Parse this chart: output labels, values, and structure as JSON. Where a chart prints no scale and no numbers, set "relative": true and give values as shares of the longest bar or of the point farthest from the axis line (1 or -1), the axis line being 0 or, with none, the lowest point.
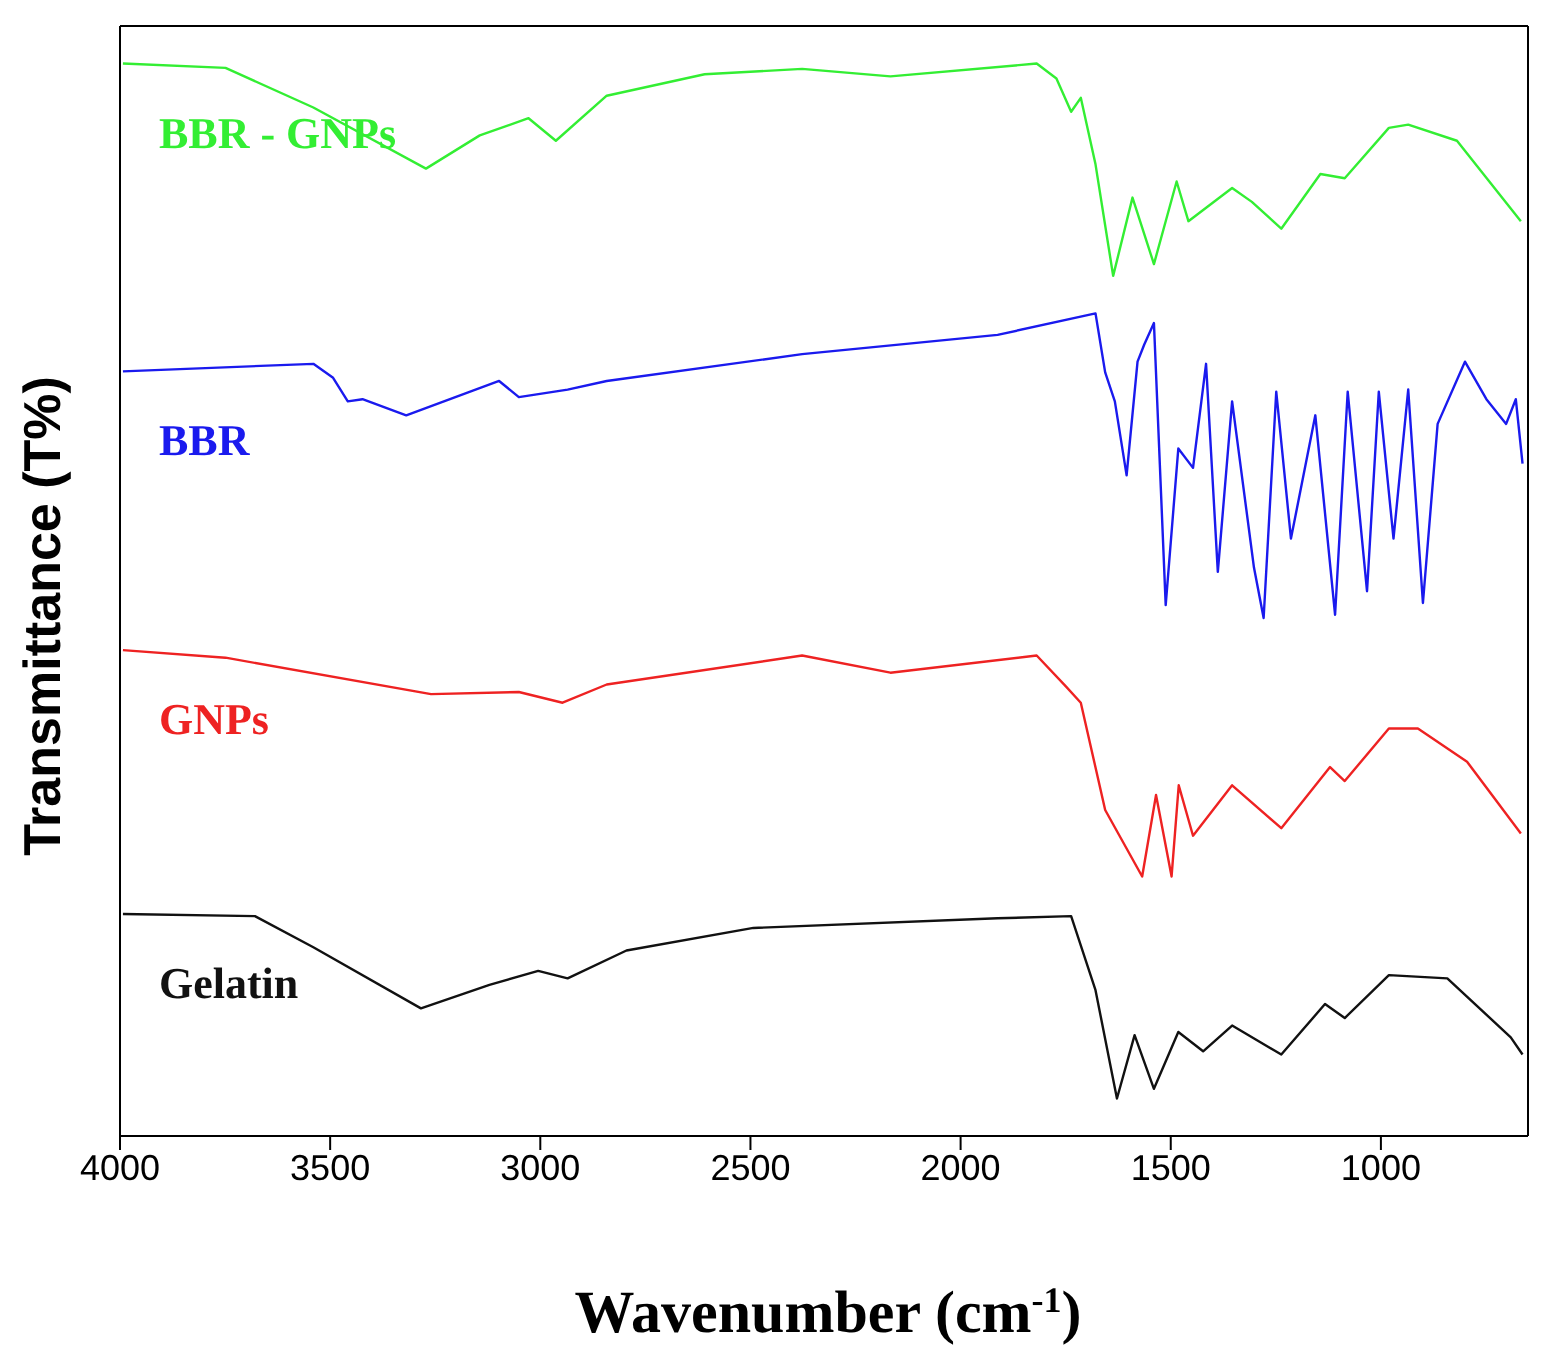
{
  "chart_data": {
    "type": "line",
    "relative": true,
    "xlabel": "Wavenumber (cm$^{-1}$)",
    "ylabel": "Transmittance (T%)",
    "xlim": [
      4000,
      650
    ],
    "xticks": [
      4000,
      3500,
      3000,
      2500,
      2000,
      1500,
      1000
    ],
    "marker": "none",
    "line_style": "solid",
    "series": [
      {
        "name": "BBR - GNPs",
        "color": "#33ee33",
        "x": [
          3993,
          3749,
          3540,
          3272,
          3144,
          3028,
          2963,
          2842,
          2609,
          2377,
          2167,
          1819,
          1772,
          1737,
          1714,
          1679,
          1637,
          1591,
          1540,
          1486,
          1458,
          1354,
          1307,
          1237,
          1144,
          1086,
          981,
          935,
          819,
          667
        ],
        "values": [
          1.0,
          0.996,
          0.959,
          0.902,
          0.933,
          0.949,
          0.928,
          0.97,
          0.99,
          0.995,
          0.988,
          1.0,
          0.986,
          0.955,
          0.968,
          0.906,
          0.802,
          0.875,
          0.813,
          0.89,
          0.853,
          0.884,
          0.871,
          0.846,
          0.897,
          0.893,
          0.94,
          0.943,
          0.928,
          0.853
        ]
      },
      {
        "name": "BBR",
        "color": "#1a1aee",
        "x": [
          3993,
          3540,
          3493,
          3458,
          3423,
          3319,
          3098,
          3051,
          2935,
          2842,
          2377,
          1912,
          1679,
          1656,
          1633,
          1605,
          1579,
          1563,
          1540,
          1512,
          1482,
          1447,
          1416,
          1388,
          1354,
          1302,
          1279,
          1249,
          1214,
          1156,
          1109,
          1079,
          1033,
          1005,
          970,
          935,
          900,
          865,
          800,
          749,
          702,
          679,
          663
        ],
        "values": [
          0.713,
          0.72,
          0.707,
          0.685,
          0.687,
          0.672,
          0.704,
          0.689,
          0.696,
          0.704,
          0.729,
          0.747,
          0.767,
          0.712,
          0.685,
          0.616,
          0.722,
          0.738,
          0.758,
          0.495,
          0.641,
          0.623,
          0.72,
          0.526,
          0.685,
          0.53,
          0.483,
          0.694,
          0.557,
          0.672,
          0.486,
          0.694,
          0.508,
          0.694,
          0.557,
          0.696,
          0.497,
          0.664,
          0.722,
          0.687,
          0.664,
          0.687,
          0.627
        ]
      },
      {
        "name": "GNPs",
        "color": "#ee2222",
        "x": [
          3993,
          3749,
          3260,
          3051,
          2947,
          2842,
          2377,
          2167,
          1819,
          1749,
          1714,
          1656,
          1568,
          1535,
          1498,
          1481,
          1447,
          1354,
          1237,
          1121,
          1086,
          981,
          912,
          795,
          667
        ],
        "values": [
          0.453,
          0.446,
          0.412,
          0.414,
          0.404,
          0.421,
          0.448,
          0.432,
          0.448,
          0.419,
          0.404,
          0.304,
          0.242,
          0.318,
          0.242,
          0.327,
          0.28,
          0.327,
          0.287,
          0.344,
          0.331,
          0.38,
          0.38,
          0.349,
          0.282
        ]
      },
      {
        "name": "Gelatin",
        "color": "#111111",
        "x": [
          3993,
          3679,
          3540,
          3284,
          3121,
          3005,
          2935,
          2795,
          2493,
          1912,
          1737,
          1679,
          1628,
          1586,
          1540,
          1482,
          1423,
          1354,
          1237,
          1133,
          1086,
          981,
          842,
          691,
          663
        ],
        "values": [
          0.207,
          0.205,
          0.176,
          0.119,
          0.141,
          0.154,
          0.147,
          0.173,
          0.194,
          0.203,
          0.205,
          0.136,
          0.035,
          0.094,
          0.044,
          0.097,
          0.079,
          0.103,
          0.076,
          0.123,
          0.11,
          0.15,
          0.147,
          0.092,
          0.076
        ]
      }
    ]
  }
}
